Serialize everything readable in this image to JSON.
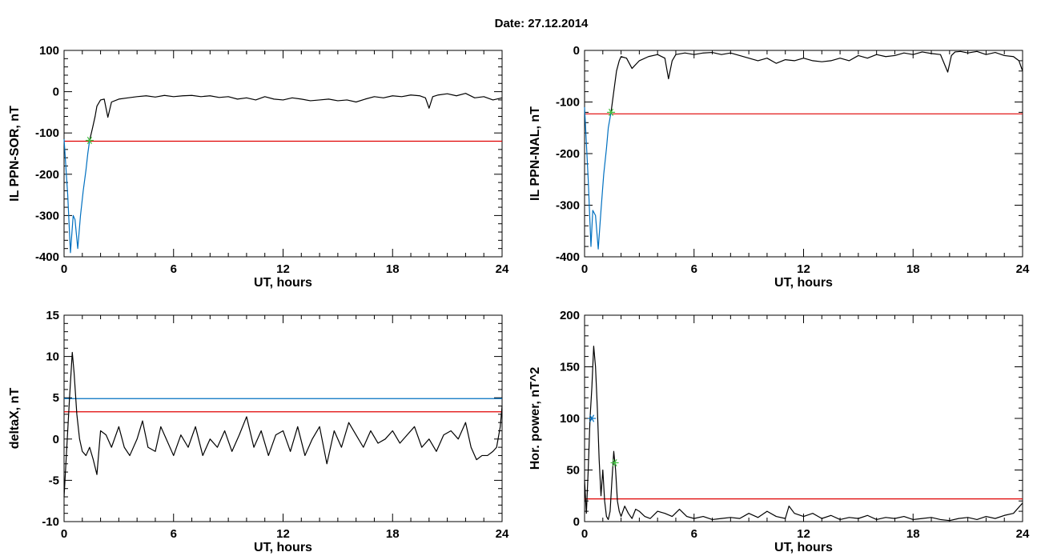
{
  "figure": {
    "title": "Date:  27.12.2014"
  },
  "chart_data": [
    {
      "id": "il_sor",
      "type": "line",
      "xlabel": "UT, hours",
      "ylabel": "IL PPN-SOR, nT",
      "xlim": [
        0,
        24
      ],
      "ylim": [
        -400,
        100
      ],
      "xticks": [
        0,
        6,
        12,
        18,
        24
      ],
      "yticks": [
        -400,
        -300,
        -200,
        -100,
        0,
        100
      ],
      "grid": false,
      "threshold_lines": [
        {
          "name": "threshold",
          "y": -120,
          "color": "#e00000"
        }
      ],
      "markers": [
        {
          "x": 1.4,
          "y": -118,
          "color": "#40c040",
          "symbol": "asterisk"
        }
      ],
      "series": [
        {
          "color": "#0070c0",
          "x": [
            0,
            0.2,
            0.35,
            0.5,
            0.6,
            0.75,
            0.9,
            1.05,
            1.2,
            1.3,
            1.4
          ],
          "y": [
            -115,
            -250,
            -390,
            -300,
            -310,
            -380,
            -300,
            -240,
            -190,
            -150,
            -118
          ]
        },
        {
          "color": "#000000",
          "x": [
            1.4,
            1.55,
            1.7,
            1.8,
            2.0,
            2.2,
            2.4,
            2.6,
            3.0,
            3.5,
            4.0,
            4.5,
            5.0,
            5.5,
            6.0,
            6.5,
            7.0,
            7.5,
            8.0,
            8.5,
            9.0,
            9.5,
            10.0,
            10.5,
            11.0,
            11.5,
            12.0,
            12.5,
            13.0,
            13.5,
            14.0,
            14.5,
            15.0,
            15.5,
            16.0,
            16.5,
            17.0,
            17.5,
            18.0,
            18.5,
            19.0,
            19.5,
            19.8,
            20.0,
            20.2,
            20.5,
            21.0,
            21.5,
            22.0,
            22.5,
            23.0,
            23.5,
            24.0
          ],
          "y": [
            -118,
            -90,
            -60,
            -35,
            -20,
            -18,
            -62,
            -25,
            -18,
            -15,
            -12,
            -10,
            -13,
            -9,
            -12,
            -10,
            -9,
            -12,
            -10,
            -14,
            -12,
            -18,
            -15,
            -20,
            -12,
            -18,
            -20,
            -15,
            -18,
            -22,
            -20,
            -18,
            -22,
            -20,
            -25,
            -18,
            -12,
            -15,
            -10,
            -12,
            -8,
            -10,
            -15,
            -40,
            -12,
            -8,
            -5,
            -10,
            -4,
            -15,
            -12,
            -20,
            -15
          ]
        }
      ]
    },
    {
      "id": "il_nal",
      "type": "line",
      "xlabel": "UT, hours",
      "ylabel": "IL PPN-NAL, nT",
      "xlim": [
        0,
        24
      ],
      "ylim": [
        -400,
        0
      ],
      "xticks": [
        0,
        6,
        12,
        18,
        24
      ],
      "yticks": [
        -400,
        -300,
        -200,
        -100,
        0
      ],
      "grid": false,
      "threshold_lines": [
        {
          "name": "threshold",
          "y": -123,
          "color": "#e00000"
        }
      ],
      "markers": [
        {
          "x": 1.45,
          "y": -120,
          "color": "#40c040",
          "symbol": "asterisk"
        }
      ],
      "series": [
        {
          "color": "#0070c0",
          "x": [
            0,
            0.2,
            0.35,
            0.45,
            0.6,
            0.75,
            0.9,
            1.05,
            1.2,
            1.3,
            1.45
          ],
          "y": [
            -110,
            -250,
            -380,
            -310,
            -320,
            -385,
            -310,
            -240,
            -190,
            -150,
            -120
          ]
        },
        {
          "color": "#000000",
          "x": [
            1.45,
            1.6,
            1.75,
            1.9,
            2.0,
            2.3,
            2.6,
            3.0,
            3.5,
            4.0,
            4.4,
            4.6,
            4.8,
            5.0,
            5.5,
            6.0,
            6.5,
            7.0,
            7.5,
            8.0,
            8.5,
            9.0,
            9.5,
            10.0,
            10.5,
            11.0,
            11.5,
            12.0,
            12.5,
            13.0,
            13.5,
            14.0,
            14.5,
            15.0,
            15.5,
            16.0,
            16.5,
            17.0,
            17.5,
            18.0,
            18.5,
            19.0,
            19.5,
            19.9,
            20.1,
            20.3,
            20.6,
            21.0,
            21.5,
            22.0,
            22.5,
            23.0,
            23.5,
            23.8,
            24.0
          ],
          "y": [
            -120,
            -80,
            -40,
            -20,
            -12,
            -15,
            -35,
            -20,
            -12,
            -8,
            -15,
            -55,
            -20,
            -8,
            -5,
            -8,
            -5,
            -4,
            -8,
            -5,
            -10,
            -15,
            -20,
            -15,
            -25,
            -18,
            -20,
            -15,
            -20,
            -22,
            -20,
            -15,
            -20,
            -10,
            -15,
            -8,
            -12,
            -10,
            -5,
            -8,
            -3,
            -6,
            -8,
            -42,
            -10,
            -3,
            -2,
            -5,
            -2,
            -8,
            -4,
            -10,
            -12,
            -20,
            -40
          ]
        }
      ]
    },
    {
      "id": "deltax",
      "type": "line",
      "xlabel": "UT, hours",
      "ylabel": "deltaX, nT",
      "xlim": [
        0,
        24
      ],
      "ylim": [
        -10,
        15
      ],
      "xticks": [
        0,
        6,
        12,
        18,
        24
      ],
      "yticks": [
        -10,
        -5,
        0,
        5,
        10,
        15
      ],
      "grid": false,
      "threshold_lines": [
        {
          "name": "threshold-blue",
          "y": 4.9,
          "color": "#0070c0"
        },
        {
          "name": "threshold-red",
          "y": 3.3,
          "color": "#e00000"
        }
      ],
      "markers": [],
      "series": [
        {
          "color": "#000000",
          "x": [
            0,
            0.15,
            0.3,
            0.45,
            0.55,
            0.7,
            0.85,
            1.0,
            1.2,
            1.4,
            1.6,
            1.8,
            2.0,
            2.3,
            2.6,
            3.0,
            3.3,
            3.6,
            4.0,
            4.3,
            4.6,
            5.0,
            5.3,
            5.6,
            6.0,
            6.4,
            6.8,
            7.2,
            7.6,
            8.0,
            8.4,
            8.8,
            9.2,
            9.6,
            10.0,
            10.4,
            10.8,
            11.2,
            11.6,
            12.0,
            12.4,
            12.8,
            13.2,
            13.6,
            14.0,
            14.4,
            14.8,
            15.2,
            15.6,
            16.0,
            16.4,
            16.8,
            17.2,
            17.6,
            18.0,
            18.4,
            18.8,
            19.2,
            19.6,
            20.0,
            20.4,
            20.8,
            21.2,
            21.6,
            22.0,
            22.3,
            22.6,
            22.9,
            23.2,
            23.5,
            23.7,
            23.9,
            24.0
          ],
          "y": [
            -7,
            -1,
            5,
            10.5,
            8,
            3,
            0,
            -1.5,
            -2,
            -1,
            -2.5,
            -4.3,
            1,
            0.5,
            -1,
            1.5,
            -1,
            -2,
            0,
            2.2,
            -1,
            -1.5,
            1.5,
            0,
            -2,
            0.5,
            -1,
            1.5,
            -2,
            0,
            -1,
            1,
            -1.5,
            0.5,
            2.7,
            -1,
            1,
            -2,
            0.5,
            1,
            -1.5,
            1.5,
            -2,
            0,
            1.5,
            -3,
            1,
            -1,
            2,
            0.5,
            -1,
            1,
            -0.5,
            0,
            1,
            -0.5,
            0.5,
            1.5,
            -1,
            0,
            -1.5,
            0.5,
            1,
            0,
            2,
            -1,
            -2.5,
            -2,
            -2,
            -1.5,
            -1,
            1.5,
            4
          ]
        }
      ]
    },
    {
      "id": "hor_power",
      "type": "line",
      "xlabel": "UT, hours",
      "ylabel": "Hor. power, nT^2",
      "xlim": [
        0,
        24
      ],
      "ylim": [
        0,
        200
      ],
      "xticks": [
        0,
        6,
        12,
        18,
        24
      ],
      "yticks": [
        0,
        50,
        100,
        150,
        200
      ],
      "grid": false,
      "threshold_lines": [
        {
          "name": "threshold",
          "y": 22,
          "color": "#e00000"
        }
      ],
      "markers": [
        {
          "x": 0.4,
          "y": 100,
          "color": "#0070c0",
          "symbol": "asterisk"
        },
        {
          "x": 1.65,
          "y": 57,
          "color": "#40c040",
          "symbol": "asterisk"
        }
      ],
      "series": [
        {
          "color": "#000000",
          "x": [
            0,
            0.1,
            0.2,
            0.3,
            0.4,
            0.5,
            0.6,
            0.7,
            0.8,
            0.9,
            1.0,
            1.1,
            1.2,
            1.3,
            1.4,
            1.5,
            1.6,
            1.7,
            1.8,
            1.9,
            2.0,
            2.2,
            2.4,
            2.6,
            2.8,
            3.0,
            3.3,
            3.6,
            4.0,
            4.4,
            4.8,
            5.2,
            5.6,
            6.0,
            6.5,
            7.0,
            7.5,
            8.0,
            8.5,
            9.0,
            9.5,
            10.0,
            10.5,
            11.0,
            11.2,
            11.5,
            12.0,
            12.5,
            13.0,
            13.5,
            14.0,
            14.5,
            15.0,
            15.5,
            16.0,
            16.5,
            17.0,
            17.5,
            18.0,
            18.5,
            19.0,
            19.5,
            20.0,
            20.5,
            21.0,
            21.5,
            22.0,
            22.5,
            23.0,
            23.5,
            24.0
          ],
          "y": [
            40,
            8,
            50,
            100,
            130,
            170,
            150,
            110,
            60,
            25,
            50,
            20,
            5,
            2,
            10,
            40,
            68,
            50,
            20,
            10,
            5,
            15,
            8,
            3,
            12,
            10,
            5,
            3,
            10,
            8,
            5,
            12,
            5,
            3,
            5,
            2,
            3,
            4,
            3,
            8,
            4,
            10,
            5,
            3,
            15,
            8,
            5,
            8,
            3,
            6,
            2,
            4,
            3,
            6,
            2,
            4,
            3,
            5,
            2,
            3,
            4,
            2,
            1,
            3,
            4,
            2,
            5,
            3,
            6,
            8,
            18
          ]
        }
      ]
    }
  ]
}
